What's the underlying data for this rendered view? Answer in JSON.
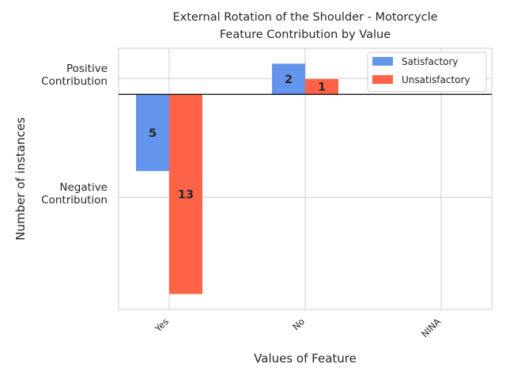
{
  "chart_data": {
    "type": "bar",
    "title": "External Rotation of the Shoulder - Motorcycle",
    "subtitle": "Feature Contribution by Value",
    "xlabel": "Values of Feature",
    "ylabel": "Number of instances",
    "categories": [
      "Yes",
      "No",
      "NINA"
    ],
    "series": [
      {
        "name": "Satisfactory",
        "color": "#6495ED",
        "values": [
          -5,
          2,
          0
        ]
      },
      {
        "name": "Unsatisfactory",
        "color": "#FF6347",
        "values": [
          -13,
          1,
          0
        ]
      }
    ],
    "y_tick_labels": [
      "Positive\nContribution",
      "Negative\nContribution"
    ],
    "bar_labels": [
      [
        "5",
        "2",
        ""
      ],
      [
        "13",
        "1",
        ""
      ]
    ],
    "ylim": [
      -14,
      3
    ],
    "legend_position": "top-right",
    "grid": true
  }
}
